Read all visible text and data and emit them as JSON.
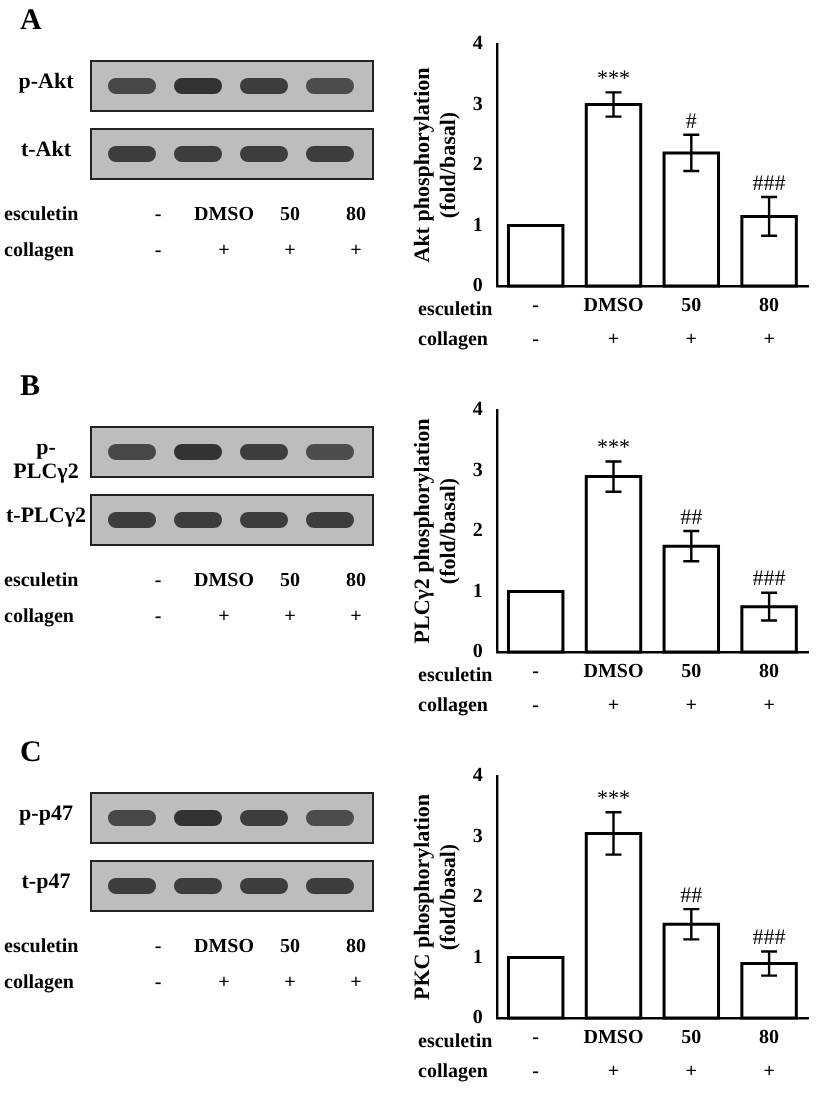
{
  "chart_data": [
    {
      "type": "bar",
      "ylabel": "Akt phosphorylation (fold/basal)",
      "categories": [
        "-",
        "DMSO",
        "50",
        "80"
      ],
      "values": [
        1,
        3.0,
        2.2,
        1.15
      ],
      "errors": [
        null,
        0.2,
        0.3,
        0.32
      ],
      "color": "#ffffff",
      "ylim": [
        0,
        4
      ],
      "yticks": [
        0,
        1,
        2,
        3,
        4
      ],
      "grid": false,
      "annotations": [
        "esculetin",
        "collagen",
        "-",
        "+",
        "+",
        "+",
        "p-Akt",
        "t-Akt",
        "A",
        {
          "text": "***",
          "x": "DMSO",
          "y": 3.2
        },
        {
          "text": "#",
          "x": "50",
          "y": 2.5
        },
        {
          "text": "###",
          "x": "80",
          "y": 1.47
        }
      ]
    },
    {
      "type": "bar",
      "ylabel": "PLCγ2 phosphorylation (fold/basal)",
      "categories": [
        "-",
        "DMSO",
        "50",
        "80"
      ],
      "values": [
        1,
        2.9,
        1.75,
        0.75
      ],
      "errors": [
        null,
        0.25,
        0.25,
        0.23
      ],
      "color": "#ffffff",
      "ylim": [
        0,
        4
      ],
      "yticks": [
        0,
        1,
        2,
        3,
        4
      ],
      "grid": false,
      "annotations": [
        "esculetin",
        "collagen",
        "-",
        "+",
        "+",
        "+",
        "p-PLCγ2",
        "t-PLCγ2",
        "B",
        {
          "text": "***",
          "x": "DMSO",
          "y": 3.15
        },
        {
          "text": "##",
          "x": "50",
          "y": 2.0
        },
        {
          "text": "###",
          "x": "80",
          "y": 0.98
        }
      ]
    },
    {
      "type": "bar",
      "ylabel": "PKC phosphorylation (fold/basal)",
      "categories": [
        "-",
        "DMSO",
        "50",
        "80"
      ],
      "values": [
        1,
        3.05,
        1.55,
        0.9
      ],
      "errors": [
        null,
        0.35,
        0.25,
        0.2
      ],
      "color": "#ffffff",
      "ylim": [
        0,
        4
      ],
      "yticks": [
        0,
        1,
        2,
        3,
        4
      ],
      "grid": false,
      "annotations": [
        "esculetin",
        "collagen",
        "-",
        "+",
        "+",
        "+",
        "p-p47",
        "t-p47",
        "C",
        {
          "text": "***",
          "x": "DMSO",
          "y": 3.4
        },
        {
          "text": "##",
          "x": "50",
          "y": 1.8
        },
        {
          "text": "###",
          "x": "80",
          "y": 1.1
        }
      ]
    }
  ]
}
